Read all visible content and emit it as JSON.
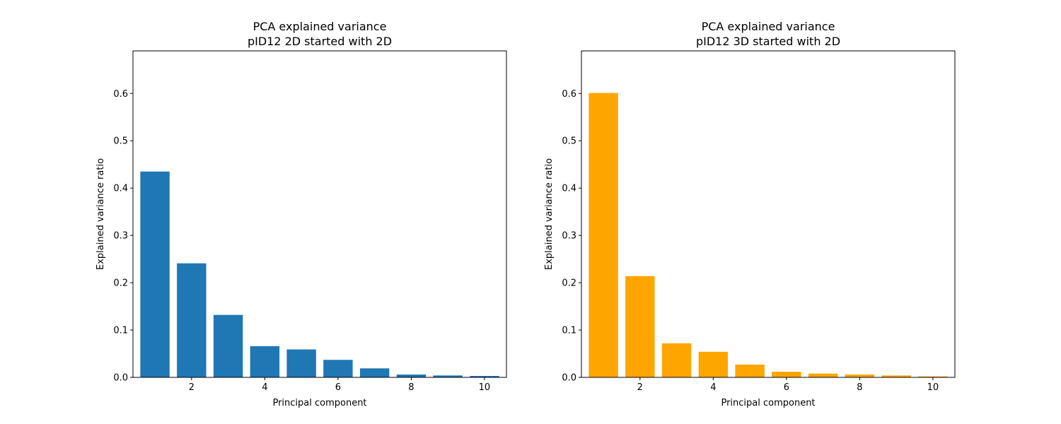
{
  "chart_data": [
    {
      "type": "bar",
      "title": "PCA explained variance",
      "subtitle": "pID12 2D started with 2D",
      "xlabel": "Principal component",
      "ylabel": "Explained variance ratio",
      "color": "#1f77b4",
      "x": [
        1,
        2,
        3,
        4,
        5,
        6,
        7,
        8,
        9,
        10
      ],
      "values": [
        0.435,
        0.241,
        0.132,
        0.066,
        0.059,
        0.037,
        0.019,
        0.006,
        0.004,
        0.003
      ],
      "xlim": [
        0.4,
        10.6
      ],
      "ylim": [
        0,
        0.69
      ],
      "xticks": [
        2,
        4,
        6,
        8,
        10
      ],
      "yticks": [
        0.0,
        0.1,
        0.2,
        0.3,
        0.4,
        0.5,
        0.6
      ],
      "grid": false
    },
    {
      "type": "bar",
      "title": "PCA explained variance",
      "subtitle": "pID12 3D started with 2D",
      "xlabel": "Principal component",
      "ylabel": "Explained variance ratio",
      "color": "#ffa500",
      "x": [
        1,
        2,
        3,
        4,
        5,
        6,
        7,
        8,
        9,
        10
      ],
      "values": [
        0.601,
        0.214,
        0.072,
        0.054,
        0.027,
        0.012,
        0.008,
        0.006,
        0.004,
        0.002
      ],
      "xlim": [
        0.4,
        10.6
      ],
      "ylim": [
        0,
        0.69
      ],
      "xticks": [
        2,
        4,
        6,
        8,
        10
      ],
      "yticks": [
        0.0,
        0.1,
        0.2,
        0.3,
        0.4,
        0.5,
        0.6
      ],
      "grid": false
    }
  ]
}
